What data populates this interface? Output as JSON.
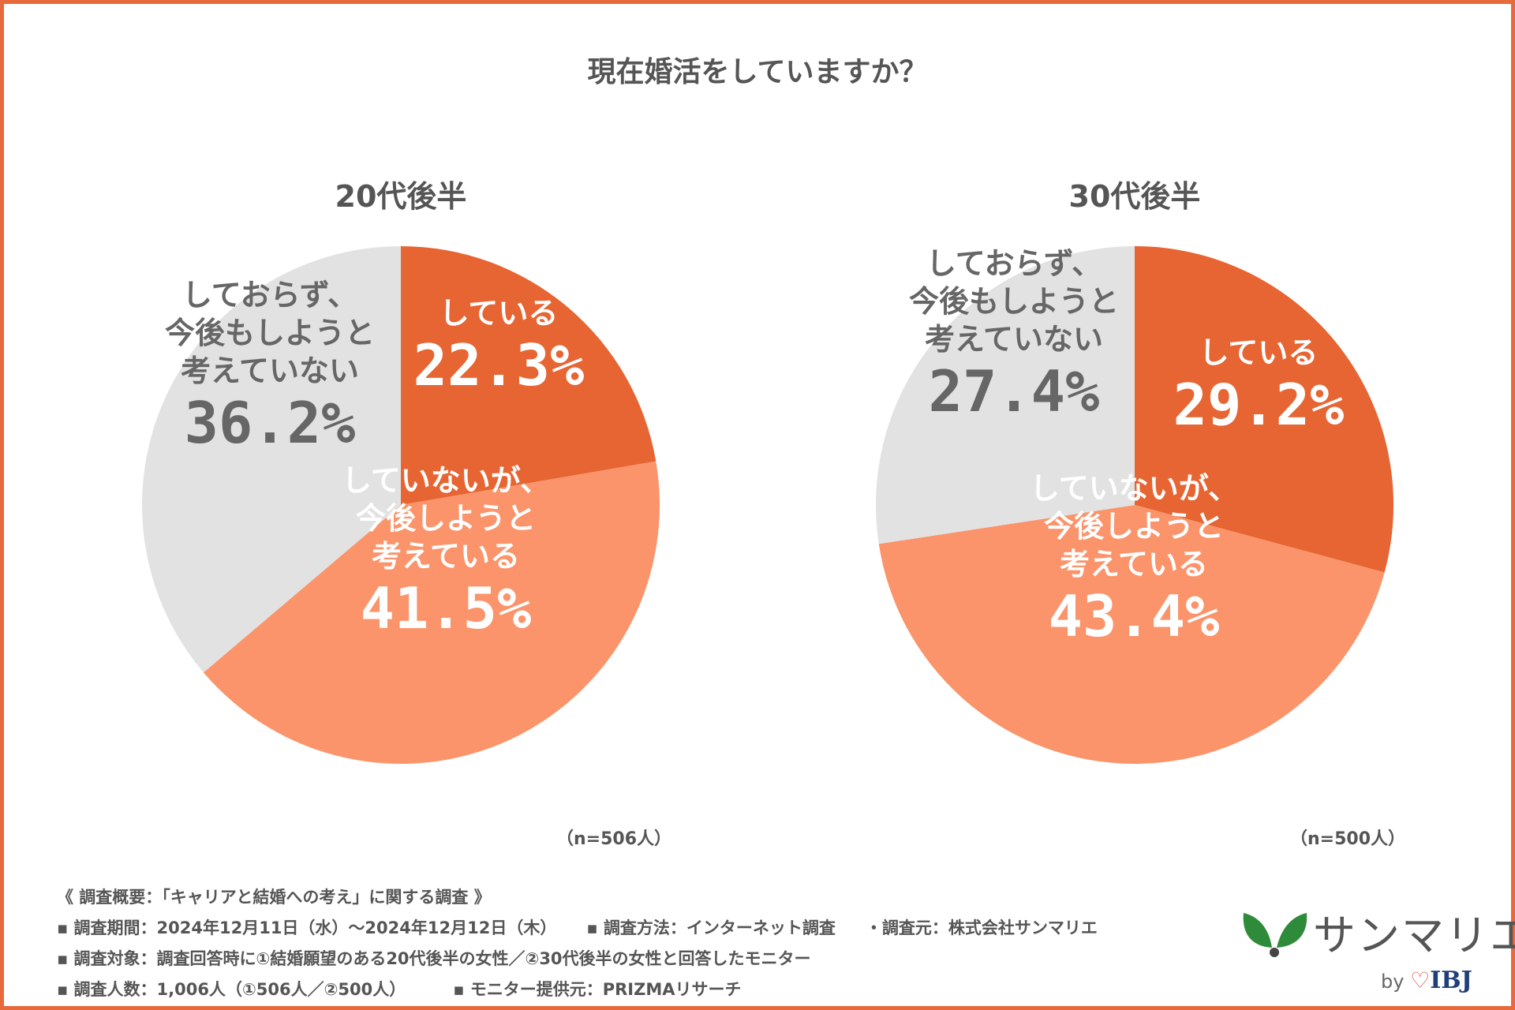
{
  "title": "現在婚活をしていますか？",
  "chart_data": [
    {
      "type": "pie",
      "title": "20代後半",
      "n_label": "（n=506人）",
      "slices": [
        {
          "label_lines": [
            "している"
          ],
          "value_label": "22.3%",
          "value": 22.3,
          "color": "#e66533",
          "text_color": "#ffffff"
        },
        {
          "label_lines": [
            "していないが、",
            "今後しようと",
            "考えている"
          ],
          "value_label": "41.5%",
          "value": 41.5,
          "color": "#fb946b",
          "text_color": "#ffffff"
        },
        {
          "label_lines": [
            "しておらず、",
            "今後もしようと",
            "考えていない"
          ],
          "value_label": "36.2%",
          "value": 36.2,
          "color": "#e2e2e2",
          "text_color": "#666666"
        }
      ]
    },
    {
      "type": "pie",
      "title": "30代後半",
      "n_label": "（n=500人）",
      "slices": [
        {
          "label_lines": [
            "している"
          ],
          "value_label": "29.2%",
          "value": 29.2,
          "color": "#e66533",
          "text_color": "#ffffff"
        },
        {
          "label_lines": [
            "していないが、",
            "今後しようと",
            "考えている"
          ],
          "value_label": "43.4%",
          "value": 43.4,
          "color": "#fb946b",
          "text_color": "#ffffff"
        },
        {
          "label_lines": [
            "しておらず、",
            "今後もしようと",
            "考えていない"
          ],
          "value_label": "27.4%",
          "value": 27.4,
          "color": "#e2e2e2",
          "text_color": "#666666"
        }
      ]
    }
  ],
  "footer": {
    "overview": "《 調査概要：「キャリアと結婚への考え」に関する調査 》",
    "period": "▪ 調査期間：2024年12月11日（水）〜2024年12月12日（木）",
    "method": "▪ 調査方法：インターネット調査",
    "org": "・調査元：株式会社サンマリエ",
    "target": "▪ 調査対象：調査回答時に①結婚願望のある20代後半の女性／②30代後半の女性と回答したモニター",
    "count": "▪ 調査人数：1,006人（①506人／②500人）",
    "provider": "▪ モニター提供元：PRIZMAリサーチ"
  },
  "logo": {
    "brand": "サンマリエ",
    "by": "by",
    "ibj": "IBJ",
    "leaf_color": "#2e8b3a",
    "heart_color": "#d9534f"
  }
}
